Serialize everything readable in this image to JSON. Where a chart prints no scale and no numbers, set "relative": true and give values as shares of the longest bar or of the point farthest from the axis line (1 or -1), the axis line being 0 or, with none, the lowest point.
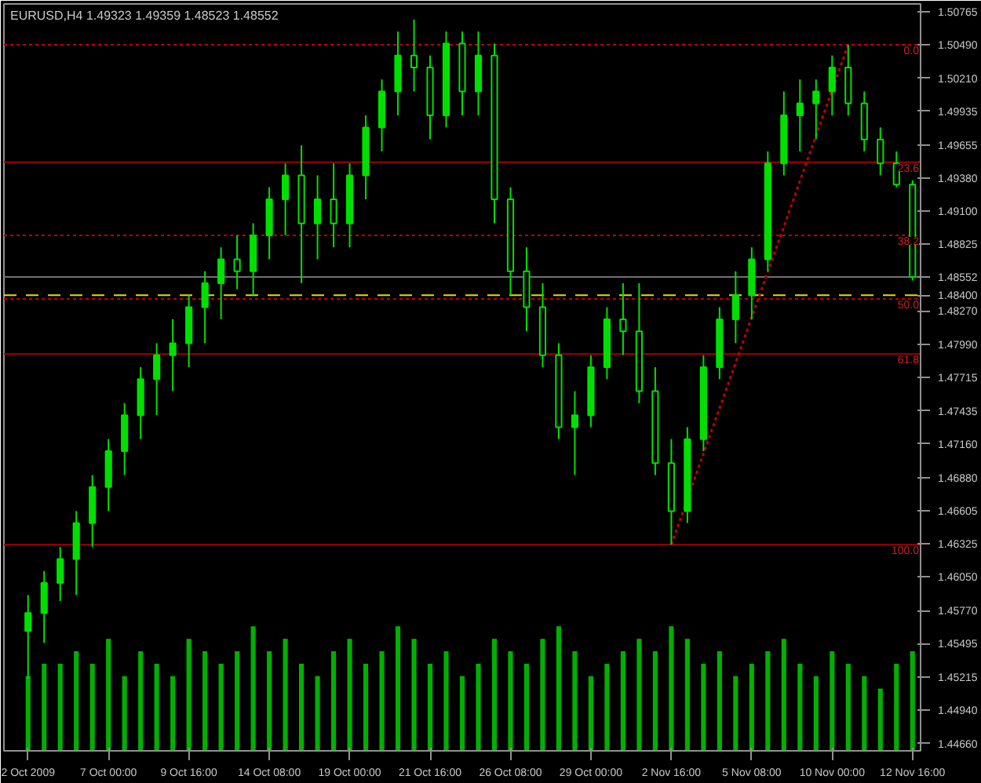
{
  "chart_data": [
    {
      "type": "candlestick",
      "title": "EURUSD,H4  1.49323 1.49359 1.48523 1.48552",
      "categories": [
        "2 Oct 2009",
        null,
        null,
        null,
        null,
        "7 Oct 00:00",
        null,
        null,
        null,
        null,
        "9 Oct 16:00",
        null,
        null,
        null,
        null,
        "14 Oct 08:00",
        null,
        null,
        null,
        null,
        "19 Oct 00:00",
        null,
        null,
        null,
        null,
        "21 Oct 16:00",
        null,
        null,
        null,
        null,
        "26 Oct 08:00",
        null,
        null,
        null,
        null,
        "29 Oct 00:00",
        null,
        null,
        null,
        null,
        "2 Nov 16:00",
        null,
        null,
        null,
        null,
        "5 Nov 08:00",
        null,
        null,
        null,
        null,
        "10 Nov 00:00",
        null,
        null,
        null,
        null,
        "12 Nov 16:00"
      ],
      "ohlc": [
        [
          1.456,
          1.459,
          1.452,
          1.4575
        ],
        [
          1.4575,
          1.461,
          1.455,
          1.46
        ],
        [
          1.46,
          1.463,
          1.4585,
          1.462
        ],
        [
          1.462,
          1.466,
          1.459,
          1.465
        ],
        [
          1.465,
          1.469,
          1.463,
          1.468
        ],
        [
          1.468,
          1.472,
          1.466,
          1.471
        ],
        [
          1.471,
          1.475,
          1.469,
          1.474
        ],
        [
          1.474,
          1.478,
          1.472,
          1.477
        ],
        [
          1.477,
          1.48,
          1.474,
          1.479
        ],
        [
          1.479,
          1.482,
          1.476,
          1.48
        ],
        [
          1.48,
          1.484,
          1.478,
          1.483
        ],
        [
          1.483,
          1.486,
          1.48,
          1.485
        ],
        [
          1.485,
          1.488,
          1.482,
          1.487
        ],
        [
          1.487,
          1.489,
          1.4845,
          1.486
        ],
        [
          1.486,
          1.49,
          1.484,
          1.489
        ],
        [
          1.489,
          1.493,
          1.487,
          1.492
        ],
        [
          1.492,
          1.495,
          1.489,
          1.494
        ],
        [
          1.494,
          1.4965,
          1.485,
          1.49
        ],
        [
          1.49,
          1.494,
          1.487,
          1.492
        ],
        [
          1.492,
          1.495,
          1.488,
          1.49
        ],
        [
          1.49,
          1.495,
          1.488,
          1.494
        ],
        [
          1.494,
          1.499,
          1.492,
          1.498
        ],
        [
          1.498,
          1.502,
          1.496,
          1.501
        ],
        [
          1.501,
          1.506,
          1.499,
          1.504
        ],
        [
          1.504,
          1.507,
          1.501,
          1.503
        ],
        [
          1.503,
          1.504,
          1.497,
          1.499
        ],
        [
          1.499,
          1.506,
          1.498,
          1.505
        ],
        [
          1.505,
          1.506,
          1.499,
          1.501
        ],
        [
          1.501,
          1.506,
          1.499,
          1.504
        ],
        [
          1.504,
          1.505,
          1.49,
          1.492
        ],
        [
          1.492,
          1.493,
          1.484,
          1.486
        ],
        [
          1.486,
          1.488,
          1.481,
          1.483
        ],
        [
          1.483,
          1.485,
          1.478,
          1.479
        ],
        [
          1.479,
          1.48,
          1.472,
          1.473
        ],
        [
          1.473,
          1.476,
          1.469,
          1.474
        ],
        [
          1.474,
          1.479,
          1.473,
          1.478
        ],
        [
          1.478,
          1.483,
          1.477,
          1.482
        ],
        [
          1.482,
          1.485,
          1.479,
          1.481
        ],
        [
          1.481,
          1.485,
          1.475,
          1.476
        ],
        [
          1.476,
          1.478,
          1.469,
          1.47
        ],
        [
          1.47,
          1.472,
          1.4632,
          1.466
        ],
        [
          1.466,
          1.473,
          1.465,
          1.472
        ],
        [
          1.472,
          1.479,
          1.471,
          1.478
        ],
        [
          1.478,
          1.483,
          1.477,
          1.482
        ],
        [
          1.482,
          1.486,
          1.48,
          1.484
        ],
        [
          1.484,
          1.488,
          1.482,
          1.487
        ],
        [
          1.487,
          1.496,
          1.486,
          1.495
        ],
        [
          1.495,
          1.501,
          1.494,
          1.499
        ],
        [
          1.499,
          1.502,
          1.496,
          1.5
        ],
        [
          1.5,
          1.502,
          1.497,
          1.501
        ],
        [
          1.501,
          1.504,
          1.499,
          1.503
        ],
        [
          1.503,
          1.5049,
          1.499,
          1.5
        ],
        [
          1.5,
          1.501,
          1.496,
          1.497
        ],
        [
          1.497,
          1.498,
          1.494,
          1.495
        ],
        [
          1.495,
          1.496,
          1.493,
          1.49323
        ],
        [
          1.49323,
          1.49359,
          1.48523,
          1.48552
        ]
      ],
      "color": "#00e000",
      "series": [
        {
          "type": "line",
          "color": "#c00000",
          "line_style": "dotted",
          "values": [
            null,
            null,
            null,
            null,
            null,
            null,
            null,
            null,
            null,
            null,
            null,
            null,
            null,
            null,
            null,
            null,
            null,
            null,
            null,
            null,
            null,
            null,
            null,
            null,
            null,
            null,
            null,
            null,
            null,
            null,
            null,
            null,
            null,
            null,
            null,
            null,
            null,
            null,
            null,
            null,
            1.4632,
            null,
            null,
            null,
            null,
            null,
            null,
            null,
            null,
            null,
            null,
            1.5049,
            null,
            null,
            null,
            null
          ]
        }
      ],
      "ylim": [
        1.446,
        1.5083
      ],
      "yticks": [
        {
          "value": 1.50765,
          "label": "1.50765"
        },
        {
          "value": 1.5049,
          "label": "1.50490"
        },
        {
          "value": 1.5021,
          "label": "1.50210"
        },
        {
          "value": 1.49935,
          "label": "1.49935"
        },
        {
          "value": 1.49655,
          "label": "1.49655"
        },
        {
          "value": 1.4938,
          "label": "1.49380"
        },
        {
          "value": 1.491,
          "label": "1.49100"
        },
        {
          "value": 1.48825,
          "label": "1.48825"
        },
        {
          "value": 1.48552,
          "label": "1.48552"
        },
        {
          "value": 1.484,
          "label": "1.48400"
        },
        {
          "value": 1.4827,
          "label": "1.48270"
        },
        {
          "value": 1.4799,
          "label": "1.47990"
        },
        {
          "value": 1.47715,
          "label": "1.47715"
        },
        {
          "value": 1.47435,
          "label": "1.47435"
        },
        {
          "value": 1.4716,
          "label": "1.47160"
        },
        {
          "value": 1.4688,
          "label": "1.46880"
        },
        {
          "value": 1.46605,
          "label": "1.46605"
        },
        {
          "value": 1.46325,
          "label": "1.46325"
        },
        {
          "value": 1.4605,
          "label": "1.46050"
        },
        {
          "value": 1.4577,
          "label": "1.45770"
        },
        {
          "value": 1.45495,
          "label": "1.45495"
        },
        {
          "value": 1.45215,
          "label": "1.45215"
        },
        {
          "value": 1.4494,
          "label": "1.44940"
        },
        {
          "value": 1.4466,
          "label": "1.44660"
        }
      ],
      "ref_lines": [
        {
          "axis": "y",
          "value": 1.5049,
          "color": "#c00000",
          "line_style": "dotted"
        },
        {
          "axis": "y",
          "value": 1.4951,
          "color": "#a00000",
          "line_style": "solid"
        },
        {
          "axis": "y",
          "value": 1.489,
          "color": "#c00000",
          "line_style": "dotted"
        },
        {
          "axis": "y",
          "value": 1.4837,
          "color": "#c00000",
          "line_style": "dotted"
        },
        {
          "axis": "y",
          "value": 1.4791,
          "color": "#a00000",
          "line_style": "solid"
        },
        {
          "axis": "y",
          "value": 1.4632,
          "color": "#a00000",
          "line_style": "solid"
        },
        {
          "axis": "y",
          "value": 1.48552,
          "color": "#707070",
          "line_style": "solid"
        },
        {
          "axis": "y",
          "value": 1.484,
          "color": "#e0e000",
          "line_style": "dashed"
        }
      ],
      "annotations": [
        {
          "text": "0.0",
          "y": 1.5049
        },
        {
          "text": "23.6",
          "y": 1.4951
        },
        {
          "text": "38.2",
          "y": 1.489
        },
        {
          "text": "50.0",
          "y": 1.4837
        },
        {
          "text": "61.8",
          "y": 1.4791
        },
        {
          "text": "100.0",
          "y": 1.4632
        }
      ],
      "grid": false
    },
    {
      "type": "bar",
      "relative": true,
      "color": "#00b000",
      "categories": [
        null,
        null,
        null,
        null,
        null,
        null,
        null,
        null,
        null,
        null,
        null,
        null,
        null,
        null,
        null,
        null,
        null,
        null,
        null,
        null,
        null,
        null,
        null,
        null,
        null,
        null,
        null,
        null,
        null,
        null,
        null,
        null,
        null,
        null,
        null,
        null,
        null,
        null,
        null,
        null,
        null,
        null,
        null,
        null,
        null,
        null,
        null,
        null,
        null,
        null,
        null,
        null,
        null,
        null,
        null,
        null
      ],
      "values": [
        0.6,
        0.7,
        0.7,
        0.8,
        0.7,
        0.9,
        0.6,
        0.8,
        0.7,
        0.6,
        0.9,
        0.8,
        0.7,
        0.8,
        1.0,
        0.8,
        0.9,
        0.7,
        0.6,
        0.8,
        0.9,
        0.7,
        0.8,
        1.0,
        0.9,
        0.7,
        0.8,
        0.6,
        0.7,
        0.9,
        0.8,
        0.7,
        0.9,
        1.0,
        0.8,
        0.6,
        0.7,
        0.8,
        0.9,
        0.8,
        1.0,
        0.9,
        0.7,
        0.8,
        0.6,
        0.7,
        0.8,
        0.9,
        0.7,
        0.6,
        0.8,
        0.7,
        0.6,
        0.5,
        0.7,
        0.8
      ]
    }
  ]
}
